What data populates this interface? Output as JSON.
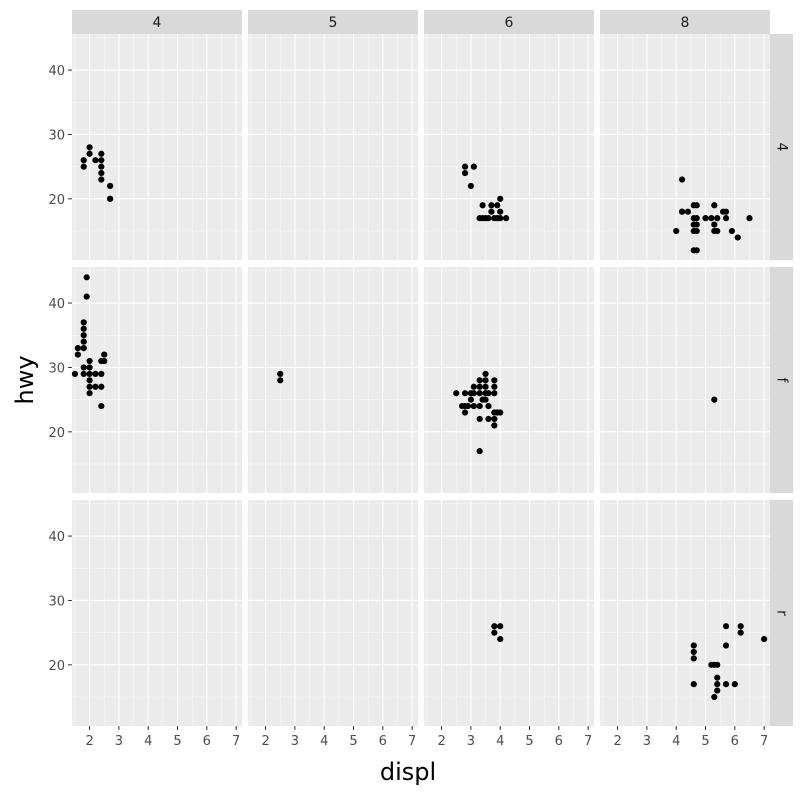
{
  "chart_data": {
    "type": "scatter",
    "xlabel": "displ",
    "ylabel": "hwy",
    "facet_cols": [
      "4",
      "5",
      "6",
      "8"
    ],
    "facet_rows": [
      "4",
      "f",
      "r"
    ],
    "xlim": [
      1.4,
      7.2
    ],
    "ylim": [
      10.5,
      45.6
    ],
    "x_ticks": [
      "2",
      "3",
      "4",
      "5",
      "6",
      "7"
    ],
    "y_ticks": [
      "20",
      "30",
      "40"
    ],
    "grid": true,
    "point_color": "#000000",
    "panel_background": "#ebebeb",
    "strip_background": "#d9d9d9",
    "panels": [
      {
        "row": "4",
        "col": "4",
        "points": [
          [
            1.8,
            25
          ],
          [
            1.8,
            26
          ],
          [
            2.0,
            28
          ],
          [
            2.0,
            27
          ],
          [
            2.2,
            26
          ],
          [
            2.4,
            27
          ],
          [
            2.4,
            26
          ],
          [
            2.4,
            25
          ],
          [
            2.4,
            24
          ],
          [
            2.4,
            23
          ],
          [
            2.7,
            22
          ],
          [
            2.7,
            20
          ],
          [
            2.7,
            20
          ]
        ]
      },
      {
        "row": "4",
        "col": "5",
        "points": []
      },
      {
        "row": "4",
        "col": "6",
        "points": [
          [
            2.8,
            25
          ],
          [
            2.8,
            24
          ],
          [
            3.0,
            22
          ],
          [
            3.1,
            25
          ],
          [
            3.3,
            17
          ],
          [
            3.4,
            19
          ],
          [
            3.4,
            17
          ],
          [
            3.6,
            17
          ],
          [
            3.7,
            19
          ],
          [
            3.7,
            18
          ],
          [
            3.8,
            17
          ],
          [
            3.9,
            19
          ],
          [
            4.0,
            20
          ],
          [
            4.0,
            18
          ],
          [
            4.0,
            17
          ],
          [
            4.2,
            17
          ],
          [
            3.5,
            17
          ],
          [
            3.9,
            17
          ]
        ]
      },
      {
        "row": "4",
        "col": "8",
        "points": [
          [
            4.0,
            15
          ],
          [
            4.2,
            23
          ],
          [
            4.2,
            18
          ],
          [
            4.4,
            18
          ],
          [
            4.6,
            19
          ],
          [
            4.6,
            17
          ],
          [
            4.6,
            16
          ],
          [
            4.6,
            15
          ],
          [
            4.7,
            19
          ],
          [
            4.7,
            17
          ],
          [
            4.7,
            16
          ],
          [
            4.7,
            15
          ],
          [
            4.7,
            12
          ],
          [
            4.6,
            12
          ],
          [
            5.0,
            17
          ],
          [
            5.2,
            17
          ],
          [
            5.3,
            19
          ],
          [
            5.3,
            16
          ],
          [
            5.3,
            15
          ],
          [
            5.4,
            17
          ],
          [
            5.4,
            15
          ],
          [
            5.6,
            18
          ],
          [
            5.7,
            17
          ],
          [
            5.7,
            18
          ],
          [
            5.9,
            15
          ],
          [
            6.1,
            14
          ],
          [
            6.5,
            17
          ],
          [
            4.2,
            18
          ]
        ]
      },
      {
        "row": "f",
        "col": "4",
        "points": [
          [
            1.6,
            32
          ],
          [
            1.6,
            33
          ],
          [
            1.8,
            29
          ],
          [
            1.8,
            33
          ],
          [
            1.8,
            35
          ],
          [
            1.8,
            37
          ],
          [
            1.8,
            36
          ],
          [
            1.8,
            34
          ],
          [
            1.8,
            30
          ],
          [
            1.9,
            44
          ],
          [
            1.9,
            41
          ],
          [
            2.0,
            29
          ],
          [
            2.0,
            28
          ],
          [
            2.0,
            27
          ],
          [
            2.0,
            26
          ],
          [
            2.0,
            31
          ],
          [
            2.0,
            30
          ],
          [
            2.2,
            29
          ],
          [
            2.2,
            27
          ],
          [
            2.4,
            31
          ],
          [
            2.4,
            29
          ],
          [
            2.4,
            27
          ],
          [
            2.4,
            24
          ],
          [
            2.5,
            32
          ],
          [
            2.5,
            31
          ],
          [
            1.5,
            29
          ]
        ]
      },
      {
        "row": "f",
        "col": "5",
        "points": [
          [
            2.5,
            29
          ],
          [
            2.5,
            28
          ]
        ]
      },
      {
        "row": "f",
        "col": "6",
        "points": [
          [
            2.5,
            26
          ],
          [
            2.7,
            24
          ],
          [
            2.8,
            26
          ],
          [
            2.8,
            24
          ],
          [
            2.8,
            23
          ],
          [
            2.9,
            24
          ],
          [
            3.0,
            26
          ],
          [
            3.0,
            25
          ],
          [
            3.1,
            27
          ],
          [
            3.1,
            26
          ],
          [
            3.1,
            24
          ],
          [
            3.3,
            28
          ],
          [
            3.3,
            27
          ],
          [
            3.3,
            26
          ],
          [
            3.3,
            24
          ],
          [
            3.3,
            22
          ],
          [
            3.3,
            17
          ],
          [
            3.4,
            25
          ],
          [
            3.5,
            29
          ],
          [
            3.5,
            28
          ],
          [
            3.5,
            27
          ],
          [
            3.5,
            26
          ],
          [
            3.5,
            25
          ],
          [
            3.6,
            26
          ],
          [
            3.6,
            24
          ],
          [
            3.6,
            22
          ],
          [
            3.8,
            28
          ],
          [
            3.8,
            27
          ],
          [
            3.8,
            26
          ],
          [
            3.8,
            23
          ],
          [
            3.8,
            22
          ],
          [
            3.8,
            21
          ],
          [
            3.9,
            23
          ],
          [
            4.0,
            23
          ]
        ]
      },
      {
        "row": "f",
        "col": "8",
        "points": [
          [
            5.3,
            25
          ]
        ]
      },
      {
        "row": "r",
        "col": "4",
        "points": []
      },
      {
        "row": "r",
        "col": "5",
        "points": []
      },
      {
        "row": "r",
        "col": "6",
        "points": [
          [
            3.8,
            26
          ],
          [
            3.8,
            25
          ],
          [
            4.0,
            26
          ],
          [
            4.0,
            24
          ]
        ]
      },
      {
        "row": "r",
        "col": "8",
        "points": [
          [
            4.6,
            17
          ],
          [
            4.6,
            21
          ],
          [
            4.6,
            22
          ],
          [
            4.6,
            23
          ],
          [
            5.2,
            20
          ],
          [
            5.3,
            20
          ],
          [
            5.3,
            15
          ],
          [
            5.4,
            16
          ],
          [
            5.4,
            17
          ],
          [
            5.4,
            18
          ],
          [
            5.4,
            20
          ],
          [
            5.7,
            26
          ],
          [
            5.7,
            23
          ],
          [
            5.7,
            17
          ],
          [
            6.0,
            17
          ],
          [
            6.2,
            25
          ],
          [
            6.2,
            26
          ],
          [
            7.0,
            24
          ]
        ]
      }
    ]
  }
}
